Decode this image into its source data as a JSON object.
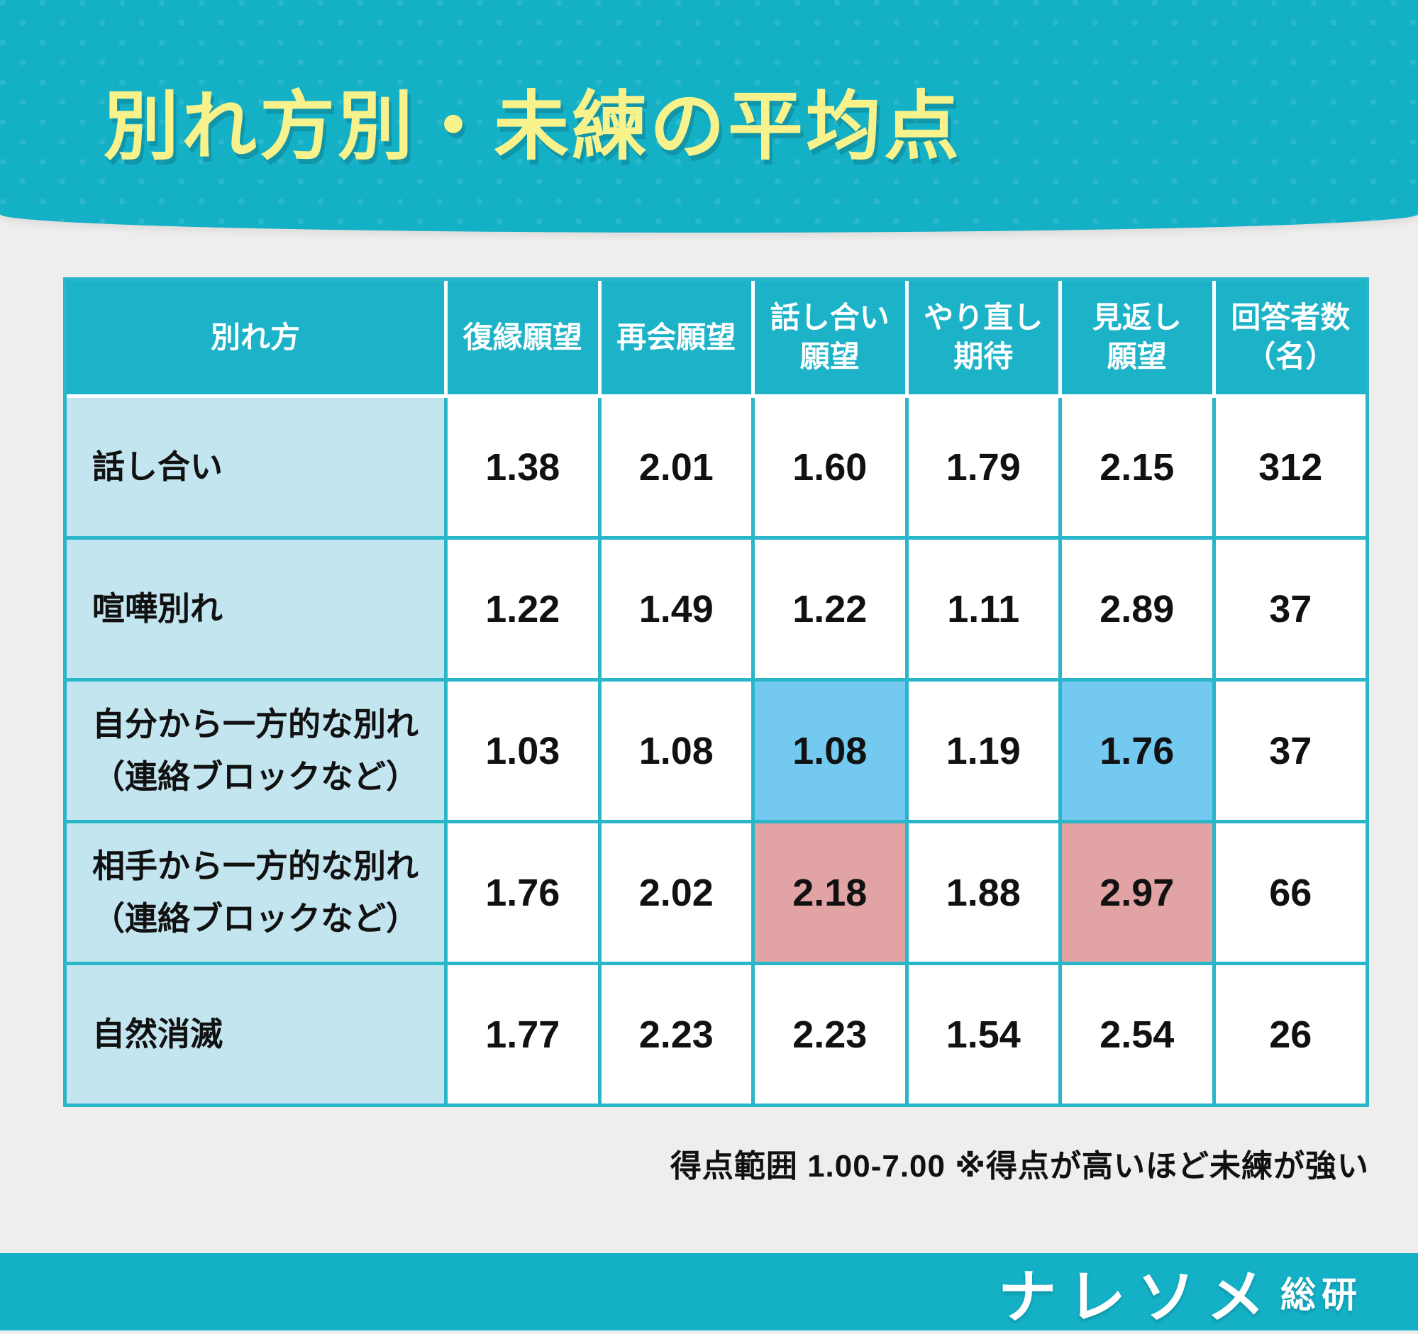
{
  "title": "別れ方別・未練の平均点",
  "table": {
    "col_headers": [
      "別れ方",
      "復縁願望",
      "再会願望",
      "話し合い\n願望",
      "やり直し\n期待",
      "見返し\n願望",
      "回答者数\n（名）"
    ],
    "rows": [
      {
        "label": "話し合い",
        "values": [
          "1.38",
          "2.01",
          "1.60",
          "1.79",
          "2.15",
          "312"
        ]
      },
      {
        "label": "喧嘩別れ",
        "values": [
          "1.22",
          "1.49",
          "1.22",
          "1.11",
          "2.89",
          "37"
        ]
      },
      {
        "label": "自分から一方的な別れ\n（連絡ブロックなど）",
        "values": [
          "1.03",
          "1.08",
          "1.08",
          "1.19",
          "1.76",
          "37"
        ]
      },
      {
        "label": "相手から一方的な別れ\n（連絡ブロックなど）",
        "values": [
          "1.76",
          "2.02",
          "2.18",
          "1.88",
          "2.97",
          "66"
        ]
      },
      {
        "label": "自然消滅",
        "values": [
          "1.77",
          "2.23",
          "2.23",
          "1.54",
          "2.54",
          "26"
        ]
      }
    ],
    "highlights": [
      {
        "row": 2,
        "col": 2,
        "color": "blue"
      },
      {
        "row": 2,
        "col": 4,
        "color": "blue"
      },
      {
        "row": 3,
        "col": 2,
        "color": "pink"
      },
      {
        "row": 3,
        "col": 4,
        "color": "pink"
      }
    ]
  },
  "footnote": "得点範囲 1.00-7.00 ※得点が高いほど未練が強い",
  "logo": {
    "main": "ナレソメ",
    "sub": "総研"
  },
  "colors": {
    "teal_band": "#14b0c6",
    "table_border": "#29b6c9",
    "header_cell": "#1cb2c7",
    "label_cell": "#c3e5ef",
    "highlight_blue": "#74c9f0",
    "highlight_pink": "#e2a3a5",
    "title_yellow": "#f7f28b",
    "background": "#efeeec"
  },
  "chart_data": {
    "type": "table",
    "title": "別れ方別・未練の平均点",
    "columns": [
      "別れ方",
      "復縁願望",
      "再会願望",
      "話し合い願望",
      "やり直し期待",
      "見返し願望",
      "回答者数（名）"
    ],
    "rows": [
      [
        "話し合い",
        1.38,
        2.01,
        1.6,
        1.79,
        2.15,
        312
      ],
      [
        "喧嘩別れ",
        1.22,
        1.49,
        1.22,
        1.11,
        2.89,
        37
      ],
      [
        "自分から一方的な別れ（連絡ブロックなど）",
        1.03,
        1.08,
        1.08,
        1.19,
        1.76,
        37
      ],
      [
        "相手から一方的な別れ（連絡ブロックなど）",
        1.76,
        2.02,
        2.18,
        1.88,
        2.97,
        66
      ],
      [
        "自然消滅",
        1.77,
        2.23,
        2.23,
        1.54,
        2.54,
        26
      ]
    ],
    "highlighted_low_cells": [
      [
        "自分から一方的な別れ（連絡ブロックなど）",
        "話し合い願望",
        1.08
      ],
      [
        "自分から一方的な別れ（連絡ブロックなど）",
        "見返し願望",
        1.76
      ]
    ],
    "highlighted_high_cells": [
      [
        "相手から一方的な別れ（連絡ブロックなど）",
        "話し合い願望",
        2.18
      ],
      [
        "相手から一方的な別れ（連絡ブロックなど）",
        "見返し願望",
        2.97
      ]
    ],
    "score_range": [
      1.0,
      7.0
    ],
    "note": "※得点が高いほど未練が強い"
  }
}
